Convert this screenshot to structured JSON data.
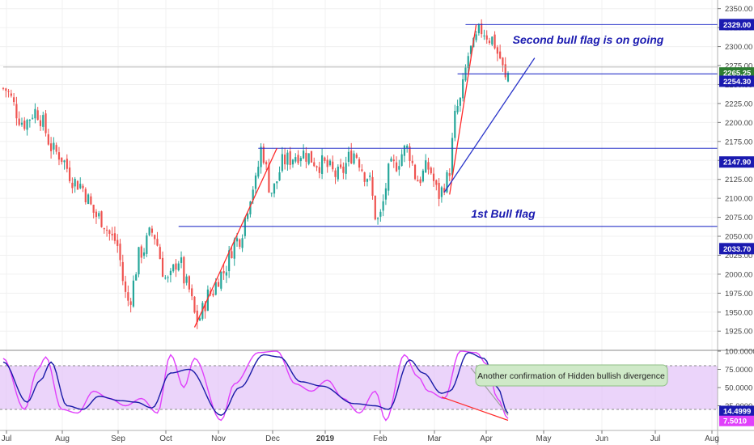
{
  "chart_data": {
    "type": "candlestick",
    "colors": {
      "up": "#26a69a",
      "down": "#ef5350",
      "trendline_blue": "#2a35c9",
      "trendline_red": "#ff2a2a",
      "stoch_k": "#e040fb",
      "stoch_d": "#1a1aa8",
      "stoch_band": "#e4c6f8",
      "annotation_text": "#1a1ab0",
      "callout_bg": "#cfe9c8"
    },
    "price_axis": {
      "ylim": [
        1905,
        2355
      ],
      "ticks": [
        "2350.00",
        "2325.00",
        "2300.00",
        "2275.00",
        "2250.00",
        "2225.00",
        "2200.00",
        "2175.00",
        "2150.00",
        "2125.00",
        "2100.00",
        "2075.00",
        "2050.00",
        "2025.00",
        "2000.00",
        "1975.00",
        "1950.00",
        "1925.00"
      ],
      "tick_values": [
        2350,
        2325,
        2300,
        2275,
        2250,
        2225,
        2200,
        2175,
        2150,
        2125,
        2100,
        2075,
        2050,
        2025,
        2000,
        1975,
        1950,
        1925
      ]
    },
    "price_labels": [
      {
        "text": "2329.00",
        "value": 2329,
        "bg": "#1a1ab0"
      },
      {
        "text": "2265.25",
        "value": 2265.25,
        "bg": "#2e7d32"
      },
      {
        "text": "2254.30",
        "value": 2254.3,
        "bg": "#1a1ab0"
      },
      {
        "text": "2147.90",
        "value": 2147.9,
        "bg": "#1a1ab0"
      },
      {
        "text": "2033.70",
        "value": 2033.7,
        "bg": "#1a1ab0"
      }
    ],
    "x_axis": {
      "labels": [
        "Jul",
        "Aug",
        "Sep",
        "Oct",
        "Nov",
        "Dec",
        "2019",
        "Feb",
        "Mar",
        "Apr",
        "May",
        "Jun",
        "Jul",
        "Aug"
      ],
      "bold": [
        false,
        false,
        false,
        false,
        false,
        false,
        true,
        false,
        false,
        false,
        false,
        false,
        false,
        false
      ]
    },
    "anchors": [
      {
        "value": 2245,
        "index": 0
      },
      {
        "value": 2200,
        "index": 8
      },
      {
        "value": 2215,
        "index": 12
      },
      {
        "value": 2160,
        "index": 20
      },
      {
        "value": 2120,
        "index": 28
      },
      {
        "value": 2075,
        "index": 36
      },
      {
        "value": 2045,
        "index": 42
      },
      {
        "value": 1965,
        "index": 47
      },
      {
        "value": 2030,
        "index": 52
      },
      {
        "value": 2055,
        "index": 56
      },
      {
        "value": 1990,
        "index": 62
      },
      {
        "value": 2020,
        "index": 66
      },
      {
        "value": 1985,
        "index": 69
      },
      {
        "value": 1940,
        "index": 73
      },
      {
        "value": 1975,
        "index": 78
      },
      {
        "value": 2000,
        "index": 82
      },
      {
        "value": 2045,
        "index": 88
      },
      {
        "value": 2120,
        "index": 95
      },
      {
        "value": 2165,
        "index": 97
      },
      {
        "value": 2110,
        "index": 101
      },
      {
        "value": 2150,
        "index": 106
      },
      {
        "value": 2160,
        "index": 112
      },
      {
        "value": 2145,
        "index": 120
      },
      {
        "value": 2130,
        "index": 126
      },
      {
        "value": 2160,
        "index": 132
      },
      {
        "value": 2130,
        "index": 137
      },
      {
        "value": 2070,
        "index": 141
      },
      {
        "value": 2140,
        "index": 146
      },
      {
        "value": 2165,
        "index": 152
      },
      {
        "value": 2125,
        "index": 156
      },
      {
        "value": 2140,
        "index": 160
      },
      {
        "value": 2105,
        "index": 164
      },
      {
        "value": 2125,
        "index": 167
      },
      {
        "value": 2220,
        "index": 171
      },
      {
        "value": 2295,
        "index": 176
      },
      {
        "value": 2322,
        "index": 180
      },
      {
        "value": 2310,
        "index": 184
      },
      {
        "value": 2285,
        "index": 187
      },
      {
        "value": 2255,
        "index": 189
      },
      {
        "value": 2265,
        "index": 190
      }
    ],
    "overlay_lines": [
      {
        "kind": "hline",
        "value": 2329,
        "from_index": 174,
        "to_end": true,
        "color": "blue"
      },
      {
        "kind": "hline",
        "value": 2264,
        "from_index": 171,
        "to_end": true,
        "color": "blue"
      },
      {
        "kind": "hline",
        "value": 2166,
        "from_index": 96,
        "to_end": true,
        "color": "blue"
      },
      {
        "kind": "hline",
        "value": 2063,
        "from_index": 66,
        "to_end": true,
        "color": "blue"
      },
      {
        "kind": "segment",
        "from": {
          "index": 72,
          "value": 1930
        },
        "to": {
          "index": 103,
          "value": 2166
        },
        "color": "red"
      },
      {
        "kind": "segment",
        "from": {
          "index": 168,
          "value": 2105
        },
        "to": {
          "index": 178,
          "value": 2329
        },
        "color": "red"
      },
      {
        "kind": "segment",
        "from": {
          "index": 166,
          "value": 2108
        },
        "to": {
          "index": 200,
          "value": 2285
        },
        "color": "blue"
      },
      {
        "kind": "hline",
        "value": 2273,
        "from_index": 0,
        "to_end": true,
        "color": "grey"
      }
    ],
    "annotations": [
      {
        "text": "Second bull flag is on going",
        "index": 193,
        "value": 2302
      },
      {
        "text": "1st Bull flag",
        "index": 177,
        "value": 2082
      }
    ],
    "stochastic": {
      "ylim": [
        0,
        100
      ],
      "band": [
        20,
        80
      ],
      "ticks": [
        "100.0000",
        "75.0000",
        "50.0000",
        "25.0000"
      ],
      "tick_values": [
        100,
        75,
        50,
        25
      ],
      "value_labels": [
        {
          "text": "14.4999",
          "value": 14.4999,
          "bg": "#1a1ab0"
        },
        {
          "text": "7.5010",
          "value": 7.501,
          "bg": "#e040fb"
        }
      ],
      "k_anchors": [
        {
          "value": 90,
          "index": 0
        },
        {
          "value": 20,
          "index": 8
        },
        {
          "value": 75,
          "index": 13
        },
        {
          "value": 92,
          "index": 16
        },
        {
          "value": 20,
          "index": 22
        },
        {
          "value": 15,
          "index": 28
        },
        {
          "value": 45,
          "index": 34
        },
        {
          "value": 35,
          "index": 40
        },
        {
          "value": 25,
          "index": 46
        },
        {
          "value": 35,
          "index": 52
        },
        {
          "value": 15,
          "index": 58
        },
        {
          "value": 95,
          "index": 63
        },
        {
          "value": 50,
          "index": 68
        },
        {
          "value": 90,
          "index": 72
        },
        {
          "value": 5,
          "index": 82
        },
        {
          "value": 55,
          "index": 87
        },
        {
          "value": 98,
          "index": 96
        },
        {
          "value": 100,
          "index": 103
        },
        {
          "value": 55,
          "index": 110
        },
        {
          "value": 45,
          "index": 116
        },
        {
          "value": 60,
          "index": 122
        },
        {
          "value": 35,
          "index": 128
        },
        {
          "value": 15,
          "index": 134
        },
        {
          "value": 45,
          "index": 140
        },
        {
          "value": 5,
          "index": 144
        },
        {
          "value": 95,
          "index": 151
        },
        {
          "value": 65,
          "index": 156
        },
        {
          "value": 45,
          "index": 160
        },
        {
          "value": 35,
          "index": 166
        },
        {
          "value": 100,
          "index": 172
        },
        {
          "value": 98,
          "index": 178
        },
        {
          "value": 82,
          "index": 182
        },
        {
          "value": 35,
          "index": 186
        },
        {
          "value": 7.5,
          "index": 190
        }
      ],
      "d_anchors": [
        {
          "value": 85,
          "index": 0
        },
        {
          "value": 30,
          "index": 9
        },
        {
          "value": 60,
          "index": 14
        },
        {
          "value": 85,
          "index": 18
        },
        {
          "value": 25,
          "index": 24
        },
        {
          "value": 20,
          "index": 30
        },
        {
          "value": 38,
          "index": 36
        },
        {
          "value": 32,
          "index": 44
        },
        {
          "value": 30,
          "index": 50
        },
        {
          "value": 22,
          "index": 56
        },
        {
          "value": 70,
          "index": 63
        },
        {
          "value": 75,
          "index": 70
        },
        {
          "value": 12,
          "index": 82
        },
        {
          "value": 50,
          "index": 89
        },
        {
          "value": 95,
          "index": 98
        },
        {
          "value": 92,
          "index": 104
        },
        {
          "value": 58,
          "index": 112
        },
        {
          "value": 52,
          "index": 120
        },
        {
          "value": 28,
          "index": 132
        },
        {
          "value": 25,
          "index": 140
        },
        {
          "value": 20,
          "index": 145
        },
        {
          "value": 88,
          "index": 153
        },
        {
          "value": 70,
          "index": 158
        },
        {
          "value": 42,
          "index": 165
        },
        {
          "value": 45,
          "index": 168
        },
        {
          "value": 98,
          "index": 175
        },
        {
          "value": 90,
          "index": 181
        },
        {
          "value": 50,
          "index": 186
        },
        {
          "value": 14.5,
          "index": 190
        }
      ],
      "overlay_lines": [
        {
          "from": {
            "index": 165,
            "value": 37
          },
          "to": {
            "index": 190,
            "value": 5
          },
          "color": "red"
        },
        {
          "from": {
            "index": 190,
            "value": 12
          },
          "to": {
            "index": 176,
            "value": 77
          },
          "color": "grey"
        }
      ],
      "callout": {
        "text": "Another confirmation of Hidden bullish divergence",
        "index": 176,
        "value": 75
      }
    }
  }
}
